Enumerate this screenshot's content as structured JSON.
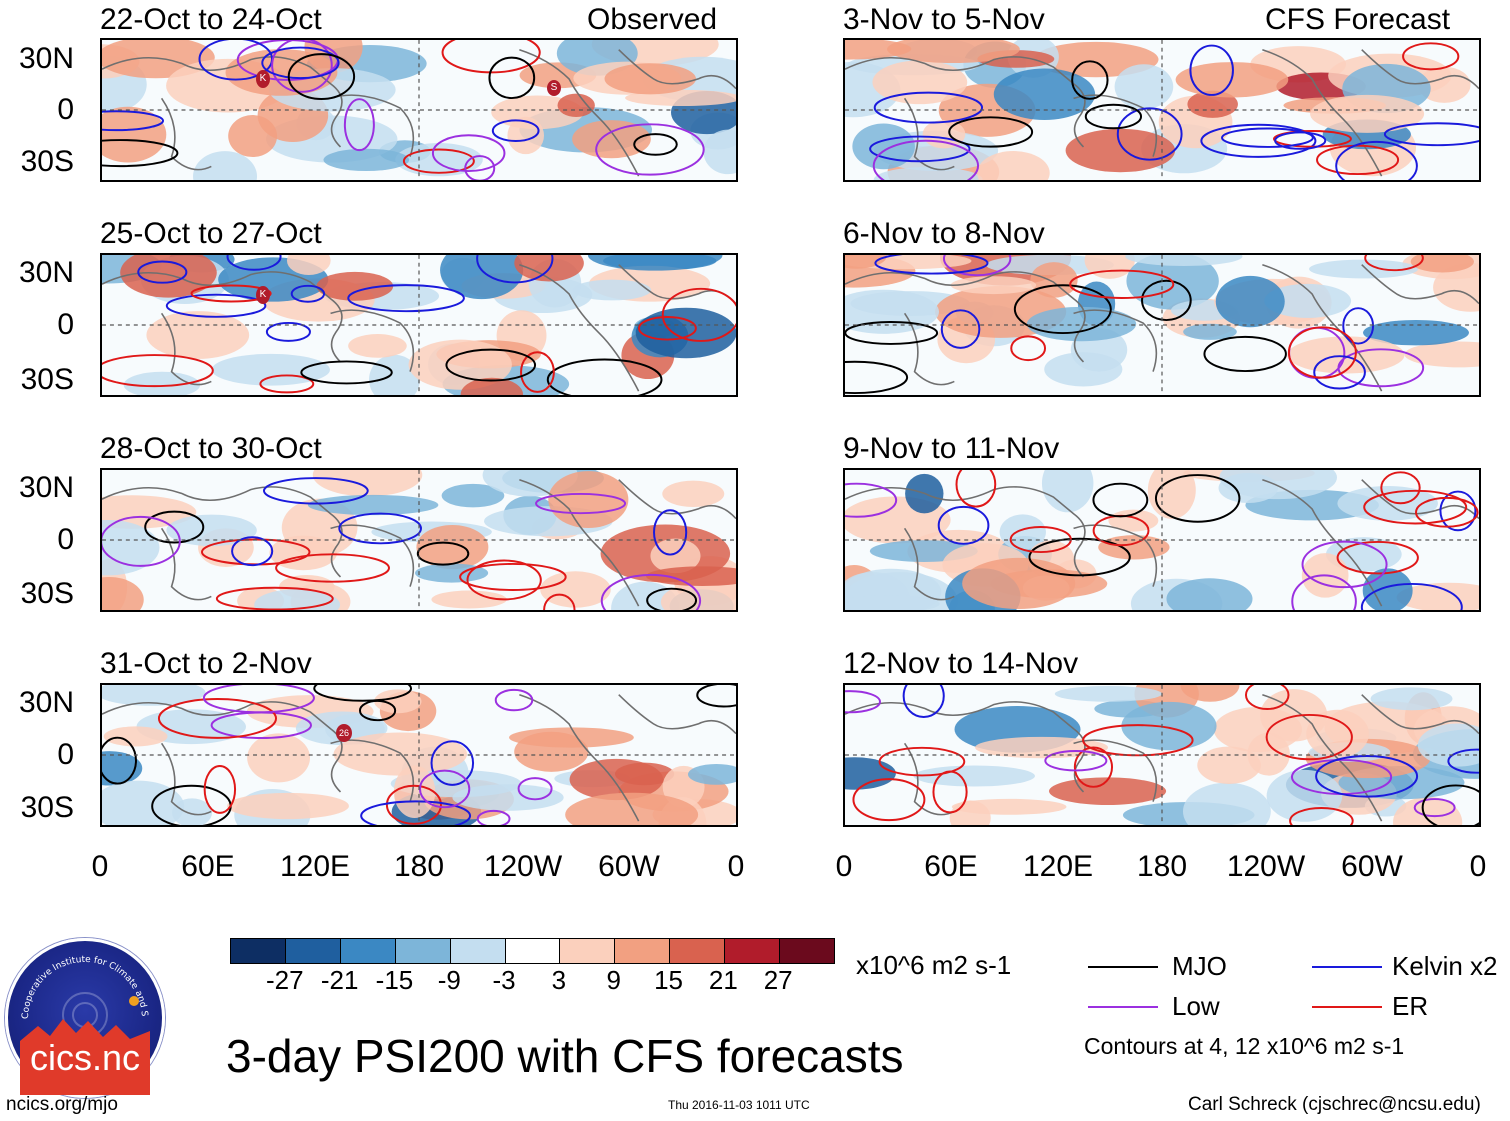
{
  "panels": [
    {
      "title": "22-Oct to 24-Oct",
      "tag": "Observed"
    },
    {
      "title": "25-Oct to 27-Oct",
      "tag": ""
    },
    {
      "title": "28-Oct to 30-Oct",
      "tag": ""
    },
    {
      "title": "31-Oct to 2-Nov",
      "tag": ""
    },
    {
      "title": "3-Nov to 5-Nov",
      "tag": "CFS Forecast"
    },
    {
      "title": "6-Nov to 8-Nov",
      "tag": ""
    },
    {
      "title": "9-Nov to 11-Nov",
      "tag": ""
    },
    {
      "title": "12-Nov to 14-Nov",
      "tag": ""
    }
  ],
  "y_ticks": [
    "30N",
    "0",
    "30S"
  ],
  "x_ticks": [
    "0",
    "60E",
    "120E",
    "180",
    "120W",
    "60W",
    "0"
  ],
  "storm_markers": [
    "K",
    "S",
    "K",
    "26"
  ],
  "colorbar": {
    "labels": [
      "-27",
      "-21",
      "-15",
      "-9",
      "-3",
      "3",
      "9",
      "15",
      "21",
      "27"
    ],
    "colors": [
      "#0d2e63",
      "#1f5f9f",
      "#3b88c3",
      "#7db5d9",
      "#c4def0",
      "#ffffff",
      "#fbd0bd",
      "#f2a081",
      "#d9624f",
      "#b11c2b",
      "#6b0a1d"
    ],
    "units": "x10^6 m2 s-1"
  },
  "legend": {
    "items": [
      {
        "label": "MJO",
        "color": "#000000"
      },
      {
        "label": "Kelvin x2",
        "color": "#1a1adc"
      },
      {
        "label": "Low",
        "color": "#9b30e0"
      },
      {
        "label": "ER",
        "color": "#e01818"
      }
    ],
    "contours_note": "Contours at 4, 12 x10^6 m2 s-1"
  },
  "title": "3-day PSI200 with CFS forecasts",
  "logo": {
    "text": "cics.nc",
    "ring_text": "Cooperative Institute for Climate and Satellites"
  },
  "footer": {
    "left": "ncics.org/mjo",
    "center": "Thu 2016-11-03 1011 UTC",
    "right": "Carl Schreck (cjschrec@ncsu.edu)"
  }
}
